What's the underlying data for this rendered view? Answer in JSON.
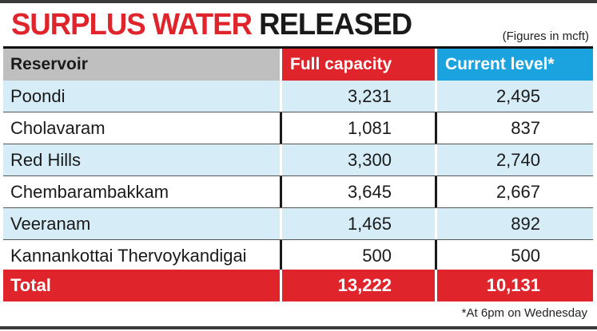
{
  "title": {
    "part1": "SURPLUS WATER",
    "part2": "RELEASED"
  },
  "units_note": "(Figures in mcft)",
  "footnote": "*At 6pm on Wednesday",
  "colors": {
    "accent_red": "#e0242b",
    "accent_blue": "#1aa3de",
    "row_blue": "#d6edf8",
    "header_grey": "#bfbfbf"
  },
  "chart_data": {
    "type": "table",
    "title": "SURPLUS WATER RELEASED",
    "columns": [
      "Reservoir",
      "Full capacity",
      "Current level*"
    ],
    "rows": [
      [
        "Poondi",
        "3,231",
        "2,495"
      ],
      [
        "Cholavaram",
        "1,081",
        "837"
      ],
      [
        "Red Hills",
        "3,300",
        "2,740"
      ],
      [
        "Chembarambakkam",
        "3,645",
        "2,667"
      ],
      [
        "Veeranam",
        "1,465",
        "892"
      ],
      [
        "Kannankottai Thervoykandigai",
        "500",
        "500"
      ]
    ],
    "total": [
      "Total",
      "13,222",
      "10,131"
    ]
  }
}
